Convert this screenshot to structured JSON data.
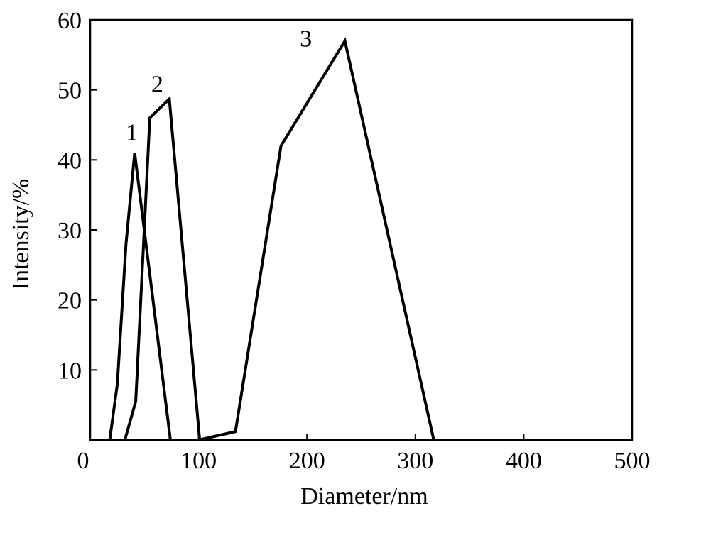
{
  "chart_data": {
    "type": "line",
    "xlabel": "Diameter/nm",
    "ylabel": "Intensity/%",
    "xlim": [
      0,
      500
    ],
    "ylim": [
      0,
      60
    ],
    "x_ticks": [
      0,
      100,
      200,
      300,
      400,
      500
    ],
    "y_ticks": [
      10,
      20,
      30,
      40,
      50,
      60
    ],
    "x_tick_labels": [
      "0",
      "100",
      "200",
      "300",
      "400",
      "500"
    ],
    "y_tick_labels": [
      "10",
      "20",
      "30",
      "40",
      "50",
      "60"
    ],
    "grid": false,
    "series": [
      {
        "name": "1",
        "x": [
          18,
          25,
          33,
          41,
          74
        ],
        "y": [
          0,
          8,
          28,
          41,
          0
        ]
      },
      {
        "name": "2",
        "x": [
          32,
          42,
          55,
          73,
          101
        ],
        "y": [
          0,
          5.5,
          46,
          48.7,
          0
        ]
      },
      {
        "name": "3",
        "x": [
          100,
          134,
          176,
          235,
          317
        ],
        "y": [
          0,
          1.2,
          42,
          57,
          0
        ]
      }
    ]
  }
}
